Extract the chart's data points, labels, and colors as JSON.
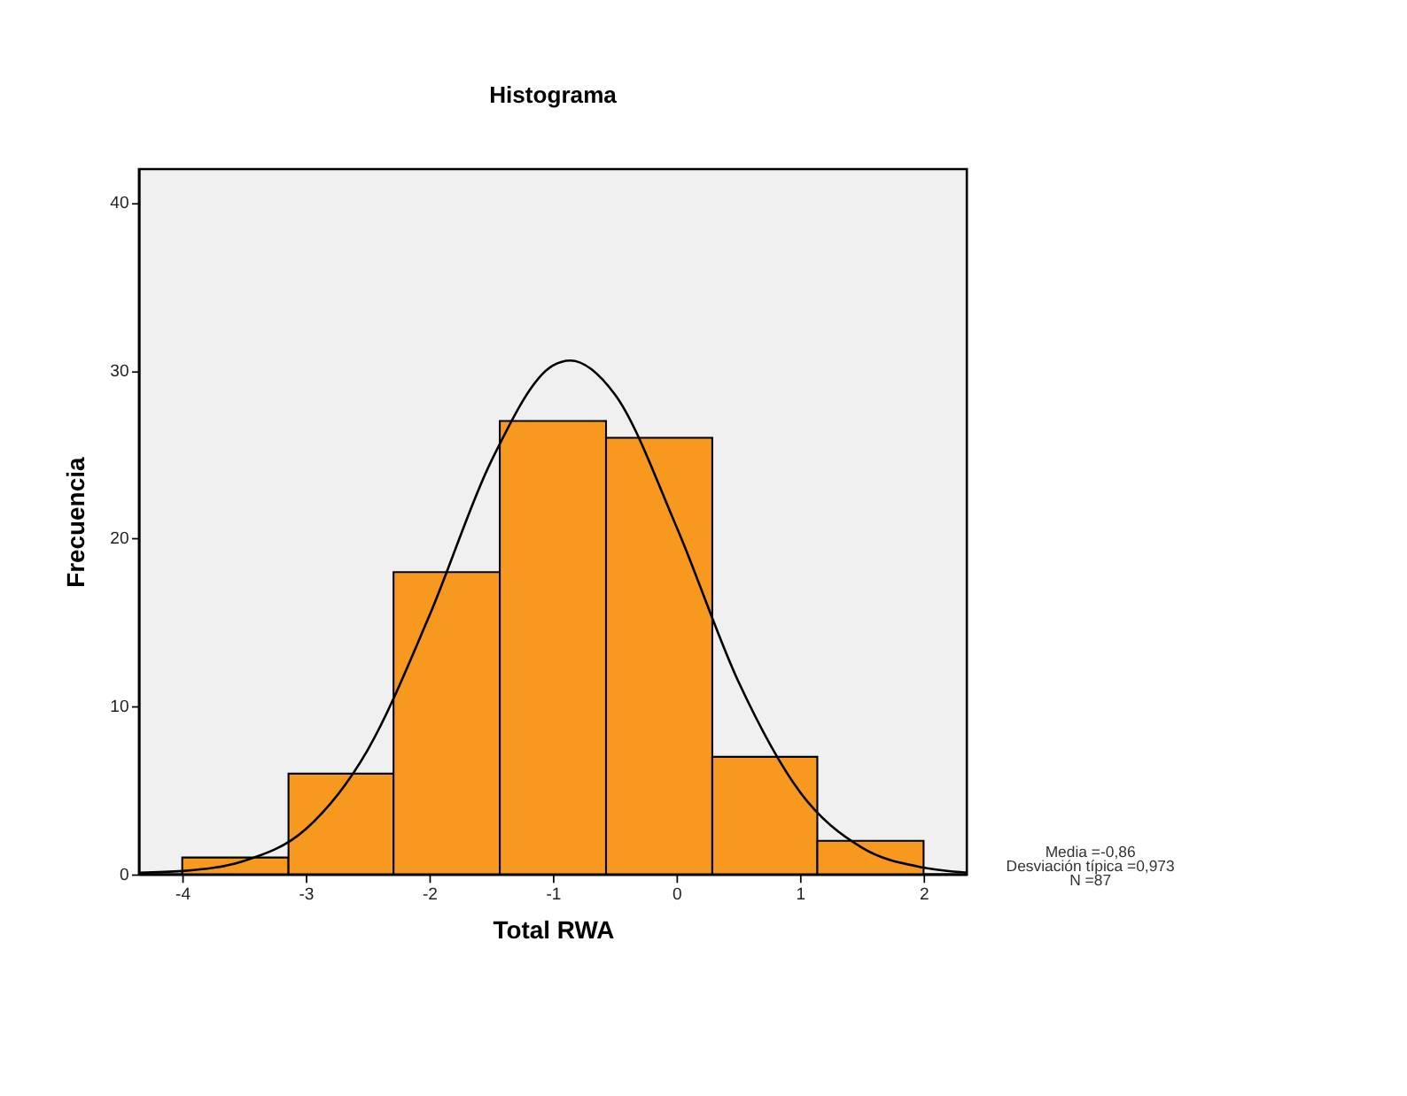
{
  "chart_data": {
    "type": "histogram",
    "title": "Histograma",
    "xlabel": "Total RWA",
    "ylabel": "Frecuencia",
    "xlim": [
      -4.35,
      2.35
    ],
    "xticks": [
      -4,
      -3,
      -2,
      -1,
      0,
      1,
      2
    ],
    "ylim": [
      0,
      42
    ],
    "yticks": [
      0,
      10,
      20,
      30,
      40
    ],
    "grid": false,
    "series": [
      {
        "color": "#f7991e",
        "bins": [
          -4,
          -3.14,
          -2.29,
          -1.43,
          -0.57,
          0.29,
          1.14,
          2
        ],
        "values": [
          1,
          6,
          18,
          27,
          26,
          7,
          2
        ]
      },
      {
        "type": "line",
        "color": "#000000",
        "x": [
          -4.35,
          -4,
          -3.5,
          -3,
          -2.5,
          -2,
          -1.5,
          -1,
          -0.86,
          -0.5,
          0,
          0.5,
          1,
          1.5,
          2,
          2.35
        ],
        "values": [
          0.1,
          0.2,
          0.8,
          2.7,
          7.4,
          15.4,
          24.6,
          30.3,
          30.6,
          28.6,
          20.7,
          11.5,
          4.9,
          1.6,
          0.4,
          0.1
        ]
      }
    ],
    "annotations": [
      "Media =-0,86",
      "Desviación típica =0,973",
      "N =87"
    ]
  }
}
